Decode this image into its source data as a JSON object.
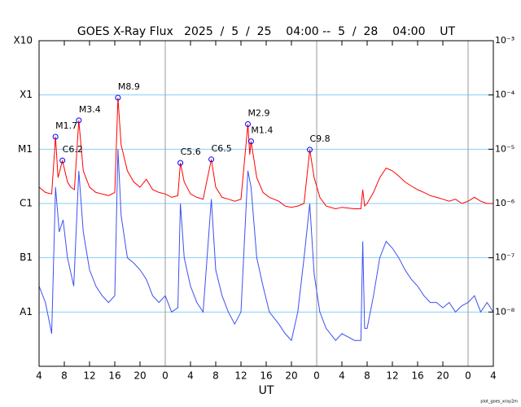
{
  "chart_data": {
    "type": "line",
    "title": "GOES X-Ray Flux   2025  /  5  /  25    04:00 --  5  /  28    04:00    UT",
    "xlabel": "UT",
    "footnote": "plot_goes_xray2m",
    "log": true,
    "grid": true,
    "grid_color": "#87cefa",
    "xlim": [
      0,
      72
    ],
    "xticks": [
      {
        "value": 0,
        "label": "4"
      },
      {
        "value": 4,
        "label": "8"
      },
      {
        "value": 8,
        "label": "12"
      },
      {
        "value": 12,
        "label": "16"
      },
      {
        "value": 16,
        "label": "20"
      },
      {
        "value": 20,
        "label": "0"
      },
      {
        "value": 24,
        "label": "4"
      },
      {
        "value": 28,
        "label": "8"
      },
      {
        "value": 32,
        "label": "12"
      },
      {
        "value": 36,
        "label": "16"
      },
      {
        "value": 40,
        "label": "20"
      },
      {
        "value": 44,
        "label": "0"
      },
      {
        "value": 48,
        "label": "4"
      },
      {
        "value": 52,
        "label": "8"
      },
      {
        "value": 56,
        "label": "12"
      },
      {
        "value": 60,
        "label": "16"
      },
      {
        "value": 64,
        "label": "20"
      },
      {
        "value": 68,
        "label": "0"
      },
      {
        "value": 72,
        "label": "4"
      }
    ],
    "ylim": [
      1e-09,
      0.001
    ],
    "yticks": [
      {
        "value": 0.001,
        "label": "X10"
      },
      {
        "value": 0.0001,
        "label": "X1"
      },
      {
        "value": 1e-05,
        "label": "M1"
      },
      {
        "value": 1e-06,
        "label": "C1"
      },
      {
        "value": 1e-07,
        "label": "B1"
      },
      {
        "value": 1e-08,
        "label": "A1"
      }
    ],
    "y2lim": [
      1e-09,
      0.001
    ],
    "y2ticks": [
      {
        "value": 0.001,
        "label": "10⁻³"
      },
      {
        "value": 0.0001,
        "label": "10⁻⁴"
      },
      {
        "value": 1e-05,
        "label": "10⁻⁵"
      },
      {
        "value": 1e-06,
        "label": "10⁻⁶"
      },
      {
        "value": 1e-07,
        "label": "10⁻⁷"
      },
      {
        "value": 1e-08,
        "label": "10⁻⁸"
      }
    ],
    "series": [
      {
        "color": "#ff0000",
        "x": [
          0,
          1,
          2,
          2.6,
          3,
          3.7,
          4.5,
          5,
          5.6,
          6.3,
          7,
          8,
          9,
          10,
          11,
          12,
          12.5,
          13,
          14,
          15,
          16,
          17,
          18,
          19,
          20,
          21,
          22,
          22.4,
          23,
          24,
          25,
          26,
          27.3,
          28,
          29,
          30,
          31,
          32,
          33.1,
          33.4,
          33.6,
          34.5,
          35.5,
          36.5,
          38,
          39,
          40,
          41,
          42,
          42.9,
          43.6,
          44.5,
          45.5,
          47,
          48,
          50,
          51,
          51.3,
          51.6,
          52,
          53,
          54,
          55,
          56,
          57,
          58,
          59,
          60,
          61,
          62,
          63,
          64,
          65,
          66,
          67,
          68,
          69,
          70,
          71,
          72
        ],
        "values": [
          2e-06,
          1.6e-06,
          1.5e-06,
          1.7e-05,
          3e-06,
          6.2e-06,
          2.5e-06,
          2e-06,
          1.8e-06,
          3.4e-05,
          4e-06,
          2e-06,
          1.6e-06,
          1.5e-06,
          1.4e-06,
          1.6e-06,
          8.9e-05,
          1.2e-05,
          4e-06,
          2.5e-06,
          2e-06,
          2.8e-06,
          1.8e-06,
          1.6e-06,
          1.5e-06,
          1.3e-06,
          1.4e-06,
          5.6e-06,
          2.5e-06,
          1.5e-06,
          1.3e-06,
          1.2e-06,
          6.5e-06,
          2e-06,
          1.3e-06,
          1.2e-06,
          1.1e-06,
          1.2e-06,
          2.9e-05,
          8e-06,
          1.4e-05,
          3e-06,
          1.6e-06,
          1.3e-06,
          1.1e-06,
          9e-07,
          8.5e-07,
          9e-07,
          1e-06,
          9.8e-06,
          3e-06,
          1.3e-06,
          9e-07,
          8e-07,
          8.5e-07,
          8e-07,
          8e-07,
          1.8e-06,
          9e-07,
          1e-06,
          1.6e-06,
          3e-06,
          4.5e-06,
          4e-06,
          3.2e-06,
          2.5e-06,
          2.1e-06,
          1.8e-06,
          1.6e-06,
          1.4e-06,
          1.3e-06,
          1.2e-06,
          1.1e-06,
          1.2e-06,
          1e-06,
          1.1e-06,
          1.3e-06,
          1.1e-06,
          1e-06,
          1e-06
        ]
      },
      {
        "color": "#3c50f0",
        "x": [
          0,
          1,
          2,
          2.6,
          3.2,
          3.8,
          4.5,
          5.5,
          6.3,
          7,
          8,
          9,
          10,
          11,
          12,
          12.5,
          13,
          14,
          15,
          16,
          17,
          18,
          19,
          20,
          21,
          22,
          22.4,
          23,
          24,
          25,
          26,
          27.3,
          28,
          29,
          30,
          31,
          32,
          33.1,
          33.6,
          34.5,
          35.5,
          36.5,
          38,
          39,
          40,
          41,
          42,
          42.9,
          43.6,
          44.5,
          45.5,
          47,
          48,
          50,
          51,
          51.3,
          51.6,
          52,
          53,
          54,
          55,
          56,
          57,
          58,
          59,
          60,
          61,
          62,
          63,
          64,
          65,
          66,
          67,
          68,
          69,
          70,
          71,
          72
        ],
        "values": [
          3e-08,
          1.5e-08,
          4e-09,
          2e-06,
          3e-07,
          5e-07,
          1e-07,
          3e-08,
          4e-06,
          3e-07,
          6e-08,
          3e-08,
          2e-08,
          1.5e-08,
          2e-08,
          1e-05,
          6e-07,
          1e-07,
          8e-08,
          6e-08,
          4e-08,
          2e-08,
          1.5e-08,
          2e-08,
          1e-08,
          1.2e-08,
          1e-06,
          1e-07,
          3e-08,
          1.5e-08,
          1e-08,
          1.2e-06,
          6e-08,
          2e-08,
          1e-08,
          6e-09,
          1e-08,
          4e-06,
          2e-06,
          1e-07,
          3e-08,
          1e-08,
          6e-09,
          4e-09,
          3e-09,
          1e-08,
          1e-07,
          1e-06,
          5e-08,
          1e-08,
          5e-09,
          3e-09,
          4e-09,
          3e-09,
          3e-09,
          2e-07,
          5e-09,
          5e-09,
          2e-08,
          1e-07,
          2e-07,
          1.5e-07,
          1e-07,
          6e-08,
          4e-08,
          3e-08,
          2e-08,
          1.5e-08,
          1.5e-08,
          1.2e-08,
          1.5e-08,
          1e-08,
          1.3e-08,
          1.5e-08,
          2e-08,
          1e-08,
          1.5e-08,
          1e-08
        ]
      }
    ],
    "annotations": [
      {
        "label": "M1.7",
        "x": 2.6,
        "y": 1.7e-05
      },
      {
        "label": "C6.2",
        "x": 3.7,
        "y": 6.2e-06
      },
      {
        "label": "M3.4",
        "x": 6.3,
        "y": 3.4e-05
      },
      {
        "label": "M8.9",
        "x": 12.5,
        "y": 8.9e-05
      },
      {
        "label": "C5.6",
        "x": 22.4,
        "y": 5.6e-06
      },
      {
        "label": "C6.5",
        "x": 27.3,
        "y": 6.5e-06
      },
      {
        "label": "M2.9",
        "x": 33.1,
        "y": 2.9e-05
      },
      {
        "label": "M1.4",
        "x": 33.6,
        "y": 1.4e-05
      },
      {
        "label": "C9.8",
        "x": 42.9,
        "y": 9.8e-06
      }
    ]
  }
}
